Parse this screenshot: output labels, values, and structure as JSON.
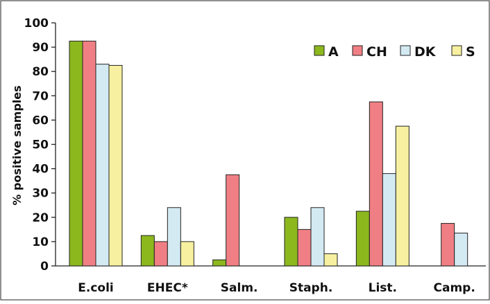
{
  "chart_data": {
    "type": "bar",
    "title": "",
    "xlabel": "",
    "ylabel": "% positive samples",
    "ylim": [
      0,
      100
    ],
    "yticks": [
      "0",
      "10",
      "20",
      "30",
      "40",
      "50",
      "60",
      "70",
      "80",
      "90",
      "100"
    ],
    "grid": false,
    "legend_position": "top-right",
    "categories": [
      "E.coli",
      "EHEC*",
      "Salm.",
      "Staph.",
      "List.",
      "Camp."
    ],
    "series": [
      {
        "name": "A",
        "color": "#8cb81e",
        "values": [
          92.5,
          12.5,
          2.5,
          20,
          22.5,
          0
        ]
      },
      {
        "name": "CH",
        "color": "#ef7f84",
        "values": [
          92.5,
          10,
          37.5,
          15,
          67.5,
          17.5
        ]
      },
      {
        "name": "DK",
        "color": "#d4eaf3",
        "values": [
          83,
          24,
          0,
          24,
          38,
          13.5
        ]
      },
      {
        "name": "S",
        "color": "#f7f0a0",
        "values": [
          82.5,
          10,
          0,
          5,
          57.5,
          0
        ]
      }
    ]
  }
}
